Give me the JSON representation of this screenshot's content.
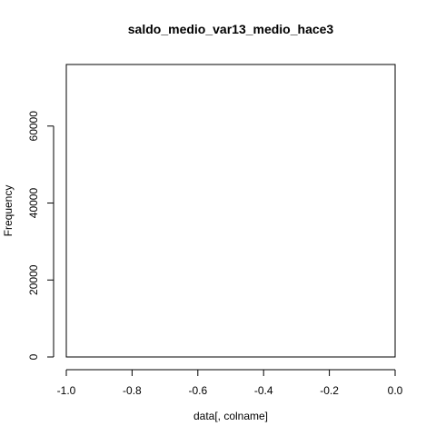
{
  "chart_data": {
    "type": "bar",
    "title": "saldo_medio_var13_medio_hace3",
    "xlabel": "data[, colname]",
    "ylabel": "Frequency",
    "xlim": [
      -1.0,
      0.0
    ],
    "ylim": [
      0,
      76000
    ],
    "x_ticks": [
      "-1.0",
      "-0.8",
      "-0.6",
      "-0.4",
      "-0.2",
      "0.0"
    ],
    "y_ticks": [
      "0",
      "20000",
      "40000",
      "60000"
    ],
    "grid": false,
    "legend": "none",
    "bins": [],
    "values": []
  }
}
